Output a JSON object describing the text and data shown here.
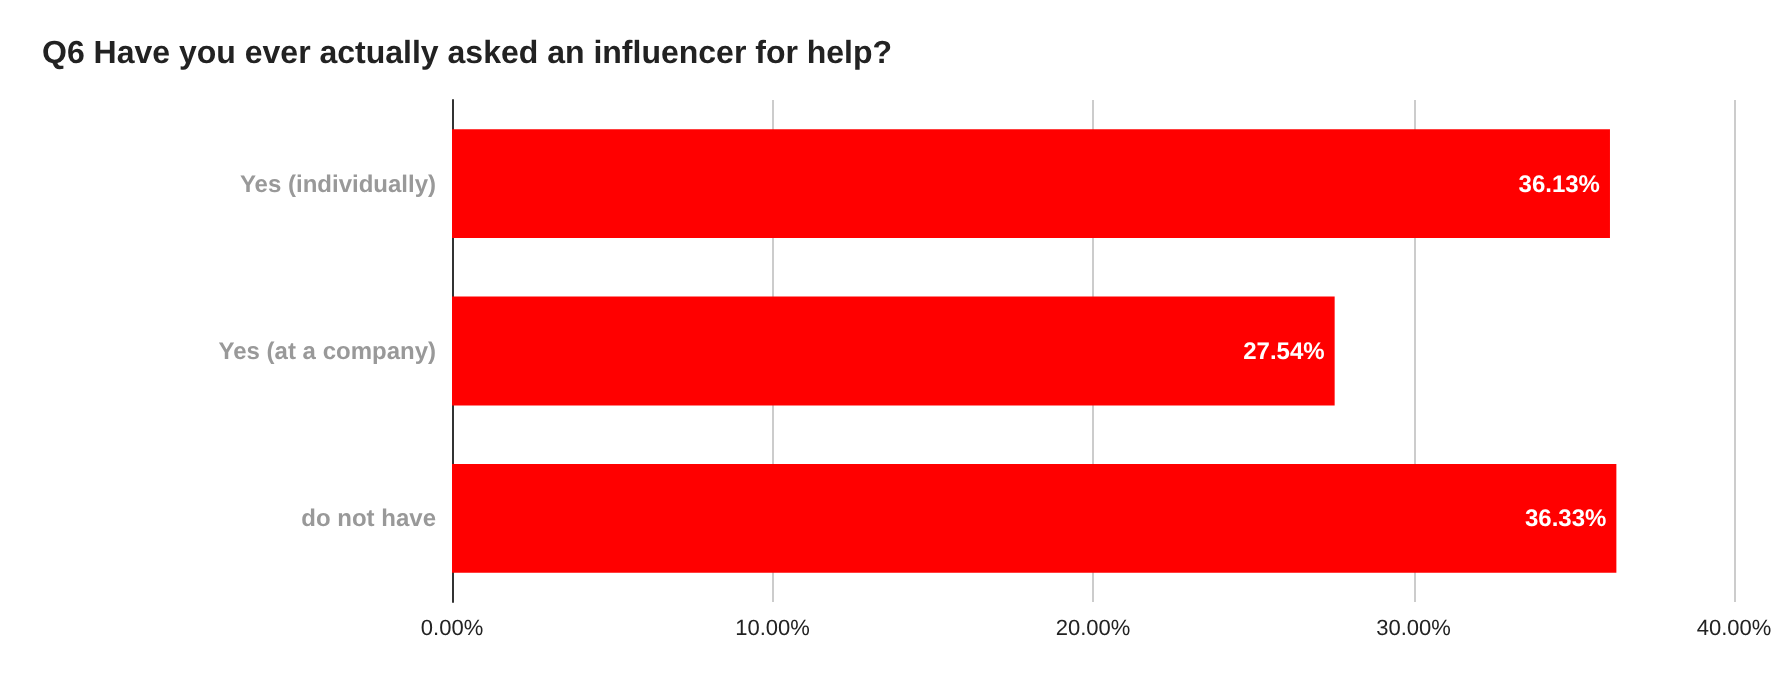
{
  "chart_data": {
    "type": "bar",
    "orientation": "horizontal",
    "title": "Q6 Have you ever actually asked an influencer for help?",
    "categories": [
      "Yes (individually)",
      "Yes (at a company)",
      "do not have"
    ],
    "values": [
      36.13,
      27.54,
      36.33
    ],
    "value_labels": [
      "36.13%",
      "27.54%",
      "36.33%"
    ],
    "color": "#ff0000",
    "xlim": [
      0,
      40
    ],
    "xticks": [
      {
        "value": 0,
        "label": "0.00%"
      },
      {
        "value": 10,
        "label": "10.00%"
      },
      {
        "value": 20,
        "label": "20.00%"
      },
      {
        "value": 30,
        "label": "30.00%"
      },
      {
        "value": 40,
        "label": "40.00%"
      }
    ],
    "grid": "x"
  }
}
